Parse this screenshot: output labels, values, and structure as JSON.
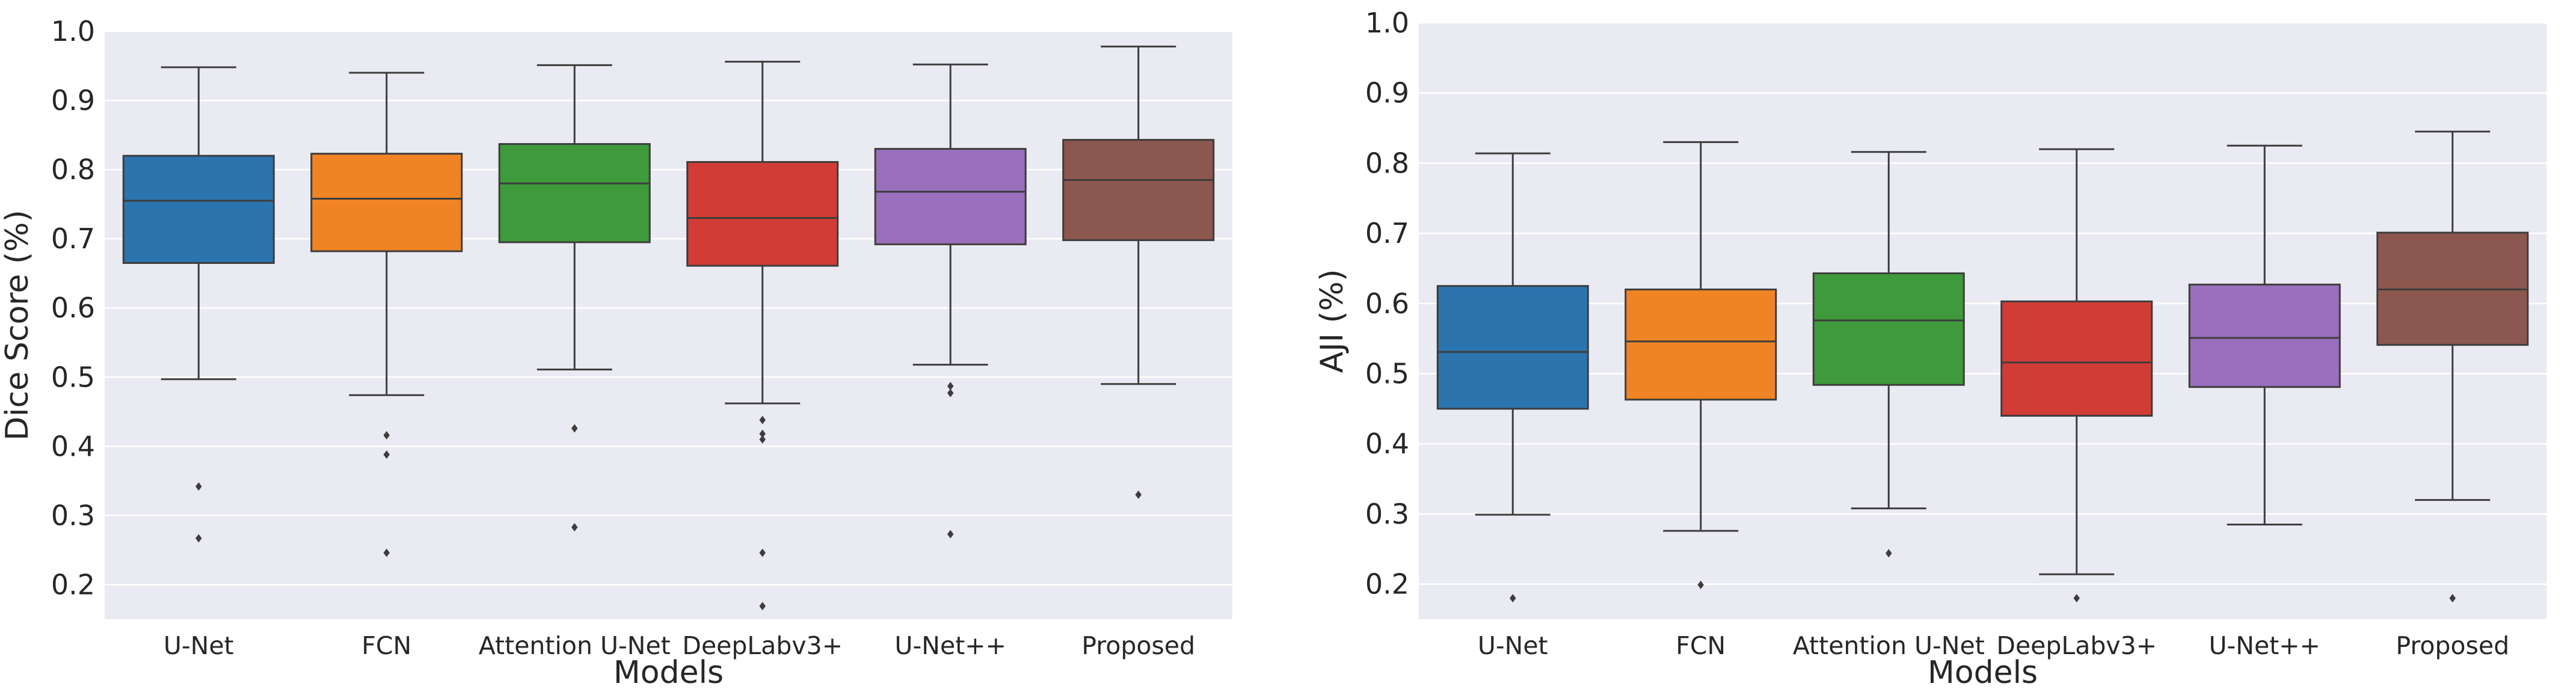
{
  "chart_data": [
    {
      "type": "box",
      "xlabel": "Models",
      "ylabel": "Dice Score (%)",
      "ylim": [
        0.15,
        1.0
      ],
      "yticks": [
        "1.0",
        "0.9",
        "0.8",
        "0.7",
        "0.6",
        "0.5",
        "0.4",
        "0.3",
        "0.2"
      ],
      "grid": true,
      "categories": [
        "U-Net",
        "FCN",
        "Attention U-Net",
        "DeepLabv3+",
        "U-Net++",
        "Proposed"
      ],
      "colors": [
        "#2b74ae",
        "#f08424",
        "#3f9a3c",
        "#d23c36",
        "#9a6fbc",
        "#8c574e"
      ],
      "boxes": [
        {
          "whisker_low": 0.497,
          "q1": 0.665,
          "median": 0.755,
          "q3": 0.82,
          "whisker_high": 0.948,
          "outliers": [
            0.342,
            0.267
          ]
        },
        {
          "whisker_low": 0.474,
          "q1": 0.682,
          "median": 0.758,
          "q3": 0.823,
          "whisker_high": 0.94,
          "outliers": [
            0.416,
            0.388,
            0.246
          ]
        },
        {
          "whisker_low": 0.511,
          "q1": 0.695,
          "median": 0.78,
          "q3": 0.837,
          "whisker_high": 0.951,
          "outliers": [
            0.426,
            0.283
          ]
        },
        {
          "whisker_low": 0.462,
          "q1": 0.661,
          "median": 0.73,
          "q3": 0.811,
          "whisker_high": 0.956,
          "outliers": [
            0.438,
            0.418,
            0.41,
            0.246,
            0.169
          ]
        },
        {
          "whisker_low": 0.518,
          "q1": 0.692,
          "median": 0.768,
          "q3": 0.83,
          "whisker_high": 0.952,
          "outliers": [
            0.487,
            0.477,
            0.273
          ]
        },
        {
          "whisker_low": 0.49,
          "q1": 0.698,
          "median": 0.785,
          "q3": 0.843,
          "whisker_high": 0.978,
          "outliers": [
            0.33
          ]
        }
      ]
    },
    {
      "type": "box",
      "xlabel": "Models",
      "ylabel": "AJI (%)",
      "ylim": [
        0.15,
        1.0
      ],
      "yticks": [
        "1.0",
        "0.9",
        "0.8",
        "0.7",
        "0.6",
        "0.5",
        "0.4",
        "0.3",
        "0.2"
      ],
      "grid": true,
      "categories": [
        "U-Net",
        "FCN",
        "Attention U-Net",
        "DeepLabv3+",
        "U-Net++",
        "Proposed"
      ],
      "colors": [
        "#2b74ae",
        "#f08424",
        "#3f9a3c",
        "#d23c36",
        "#9a6fbc",
        "#8c574e"
      ],
      "boxes": [
        {
          "whisker_low": 0.299,
          "q1": 0.45,
          "median": 0.531,
          "q3": 0.625,
          "whisker_high": 0.814,
          "outliers": [
            0.18
          ]
        },
        {
          "whisker_low": 0.276,
          "q1": 0.463,
          "median": 0.546,
          "q3": 0.62,
          "whisker_high": 0.83,
          "outliers": [
            0.199
          ]
        },
        {
          "whisker_low": 0.308,
          "q1": 0.484,
          "median": 0.576,
          "q3": 0.643,
          "whisker_high": 0.816,
          "outliers": [
            0.244
          ]
        },
        {
          "whisker_low": 0.214,
          "q1": 0.44,
          "median": 0.516,
          "q3": 0.603,
          "whisker_high": 0.82,
          "outliers": [
            0.18
          ]
        },
        {
          "whisker_low": 0.285,
          "q1": 0.481,
          "median": 0.551,
          "q3": 0.627,
          "whisker_high": 0.825,
          "outliers": []
        },
        {
          "whisker_low": 0.32,
          "q1": 0.541,
          "median": 0.62,
          "q3": 0.701,
          "whisker_high": 0.845,
          "outliers": [
            0.18
          ]
        }
      ]
    }
  ]
}
